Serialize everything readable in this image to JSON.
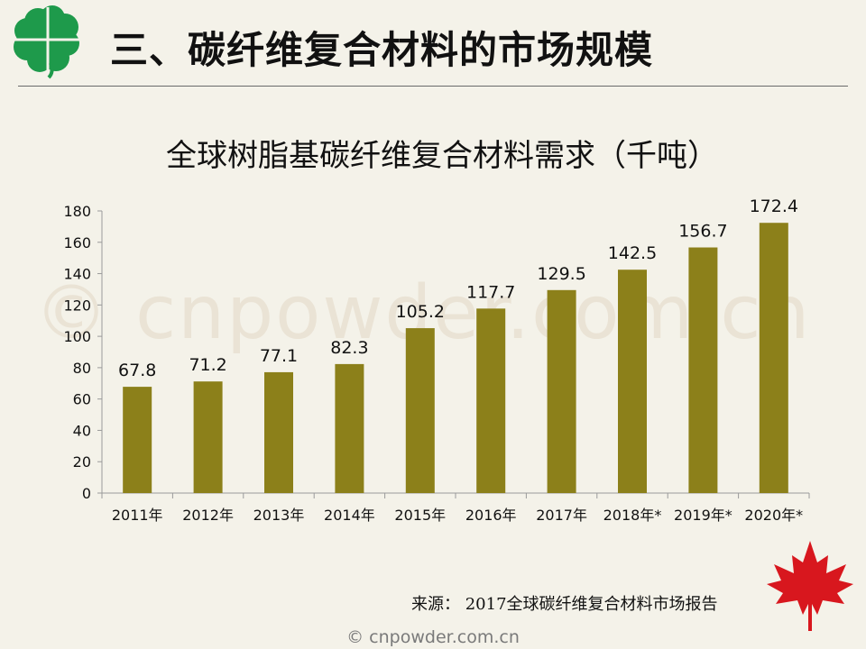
{
  "header": {
    "title": "三、碳纤维复合材料的市场规模",
    "logo_icon": "green-four-leaf-clover-icon"
  },
  "watermark": {
    "big": "© cnpowder.com.cn",
    "footer": "© cnpowder.com.cn"
  },
  "source": {
    "label": "来源：",
    "value": "2017全球碳纤维复合材料市场报告"
  },
  "decor": {
    "corner_icon": "red-maple-leaf-icon"
  },
  "colors": {
    "bar": "#8c801a",
    "background": "#f4f2e9"
  },
  "chart_data": {
    "type": "bar",
    "title": "全球树脂基碳纤维复合材料需求（千吨）",
    "categories": [
      "2011年",
      "2012年",
      "2013年",
      "2014年",
      "2015年",
      "2016年",
      "2017年",
      "2018年*",
      "2019年*",
      "2020年*"
    ],
    "values": [
      67.8,
      71.2,
      77.1,
      82.3,
      105.2,
      117.7,
      129.5,
      142.5,
      156.7,
      172.4
    ],
    "value_labels": [
      "67.8",
      "71.2",
      "77.1",
      "82.3",
      "105.2",
      "117.7",
      "129.5",
      "142.5",
      "156.7",
      "172.4"
    ],
    "y_ticks": [
      "0",
      "20",
      "40",
      "60",
      "80",
      "100",
      "120",
      "140",
      "160",
      "180"
    ],
    "ylim": [
      0,
      180
    ],
    "xlabel": "",
    "ylabel": "",
    "grid": false,
    "legend": "none"
  }
}
